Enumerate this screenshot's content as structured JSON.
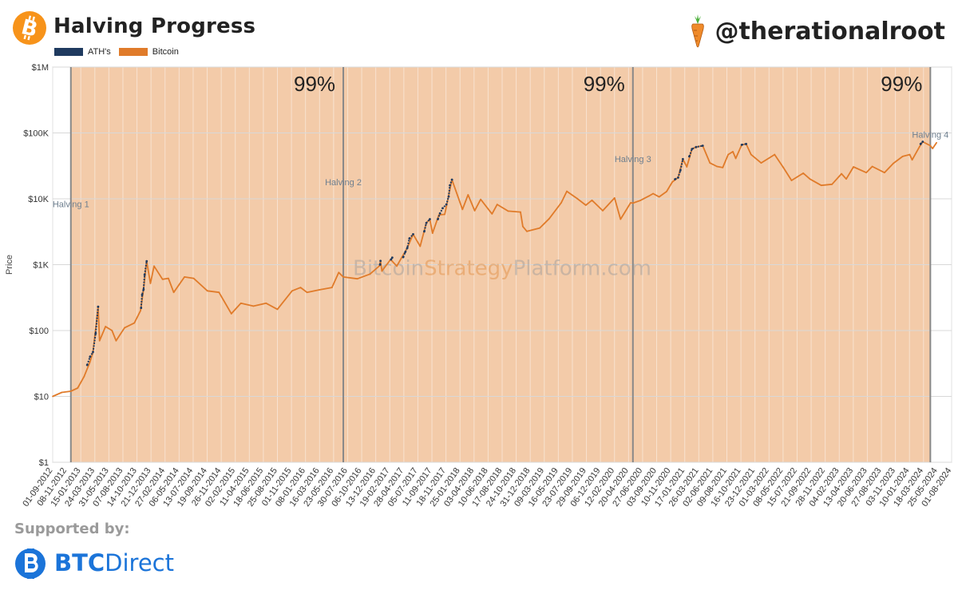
{
  "header": {
    "title": "Halving Progress",
    "handle": "@therationalroot",
    "legend": [
      {
        "label": "ATH's",
        "color": "#1f3a5f"
      },
      {
        "label": "Bitcoin",
        "color": "#e07b2a"
      }
    ]
  },
  "footer": {
    "supported_label": "Supported by:",
    "brand_prefix": "BTC",
    "brand_suffix": "Direct"
  },
  "colors": {
    "bitcoin": "#e07b2a",
    "ath": "#1f3a5f",
    "shade": "#f3cba9",
    "brand_blue": "#1b74d9",
    "btc_orange": "#f7931a"
  },
  "chart_data": {
    "type": "line",
    "y_scale": "log",
    "ylabel": "Price",
    "ylim": [
      1,
      1000000
    ],
    "y_ticks": [
      "$1",
      "$10",
      "$100",
      "$1K",
      "$10K",
      "$100K",
      "$1M"
    ],
    "x_range": [
      "2012-09-01",
      "2024-08-01"
    ],
    "x_ticks": [
      "01-09-2012",
      "08-11-2012",
      "15-01-2013",
      "24-03-2013",
      "31-05-2013",
      "07-08-2013",
      "14-10-2013",
      "21-12-2013",
      "27-02-2014",
      "06-05-2014",
      "13-07-2014",
      "19-09-2014",
      "26-11-2014",
      "02-02-2015",
      "11-04-2015",
      "18-06-2015",
      "25-08-2015",
      "01-11-2015",
      "08-01-2016",
      "16-03-2016",
      "23-05-2016",
      "30-07-2016",
      "06-10-2016",
      "13-12-2016",
      "19-02-2017",
      "28-04-2017",
      "05-07-2017",
      "11-09-2017",
      "18-11-2017",
      "25-01-2018",
      "03-04-2018",
      "10-06-2018",
      "17-08-2018",
      "24-10-2018",
      "31-12-2018",
      "09-03-2019",
      "16-05-2019",
      "23-07-2019",
      "29-09-2019",
      "06-12-2019",
      "12-02-2020",
      "20-04-2020",
      "27-06-2020",
      "03-09-2020",
      "10-11-2020",
      "17-01-2021",
      "26-03-2021",
      "02-06-2021",
      "09-08-2021",
      "16-10-2021",
      "23-12-2021",
      "01-03-2022",
      "08-05-2022",
      "15-07-2022",
      "21-09-2022",
      "28-11-2022",
      "04-02-2023",
      "13-04-2023",
      "20-06-2023",
      "27-08-2023",
      "03-11-2023",
      "10-01-2024",
      "18-03-2024",
      "25-05-2024",
      "01-08-2024"
    ],
    "halvings": [
      {
        "label": "Halving 1",
        "date": "2012-11-28"
      },
      {
        "label": "Halving 2",
        "date": "2016-07-09"
      },
      {
        "label": "Halving 3",
        "date": "2020-05-11"
      },
      {
        "label": "Halving 4",
        "date": "2024-04-20"
      }
    ],
    "progress_labels": [
      "99%",
      "99%",
      "99%"
    ],
    "watermark": {
      "part1": "Bitcoin",
      "part2": "Strategy",
      "part3": "Platform.com"
    },
    "series": [
      {
        "name": "Bitcoin",
        "points": [
          [
            "2012-09-01",
            10
          ],
          [
            "2012-10-15",
            11.5
          ],
          [
            "2012-11-28",
            12
          ],
          [
            "2012-12-31",
            13.4
          ],
          [
            "2013-01-31",
            20
          ],
          [
            "2013-02-28",
            33
          ],
          [
            "2013-03-15",
            47
          ],
          [
            "2013-04-09",
            230
          ],
          [
            "2013-04-16",
            70
          ],
          [
            "2013-05-15",
            115
          ],
          [
            "2013-06-15",
            100
          ],
          [
            "2013-07-05",
            70
          ],
          [
            "2013-08-15",
            110
          ],
          [
            "2013-10-01",
            130
          ],
          [
            "2013-10-31",
            200
          ],
          [
            "2013-11-15",
            420
          ],
          [
            "2013-11-30",
            1130
          ],
          [
            "2013-12-18",
            520
          ],
          [
            "2014-01-05",
            950
          ],
          [
            "2014-02-15",
            600
          ],
          [
            "2014-03-15",
            620
          ],
          [
            "2014-04-10",
            380
          ],
          [
            "2014-06-01",
            650
          ],
          [
            "2014-07-15",
            620
          ],
          [
            "2014-09-20",
            400
          ],
          [
            "2014-11-15",
            380
          ],
          [
            "2015-01-14",
            180
          ],
          [
            "2015-03-01",
            260
          ],
          [
            "2015-05-01",
            235
          ],
          [
            "2015-07-01",
            260
          ],
          [
            "2015-08-25",
            210
          ],
          [
            "2015-11-04",
            400
          ],
          [
            "2015-12-15",
            450
          ],
          [
            "2016-01-15",
            380
          ],
          [
            "2016-03-15",
            415
          ],
          [
            "2016-05-15",
            450
          ],
          [
            "2016-06-17",
            760
          ],
          [
            "2016-07-09",
            650
          ],
          [
            "2016-09-15",
            610
          ],
          [
            "2016-11-15",
            720
          ],
          [
            "2016-12-31",
            960
          ],
          [
            "2017-01-05",
            1140
          ],
          [
            "2017-01-12",
            800
          ],
          [
            "2017-02-23",
            1200
          ],
          [
            "2017-03-25",
            950
          ],
          [
            "2017-05-15",
            1800
          ],
          [
            "2017-06-12",
            2900
          ],
          [
            "2017-07-16",
            1900
          ],
          [
            "2017-08-15",
            4300
          ],
          [
            "2017-09-01",
            4900
          ],
          [
            "2017-09-14",
            3000
          ],
          [
            "2017-10-15",
            5700
          ],
          [
            "2017-11-12",
            5800
          ],
          [
            "2017-12-17",
            19500
          ],
          [
            "2018-02-06",
            6900
          ],
          [
            "2018-03-05",
            11500
          ],
          [
            "2018-04-06",
            6600
          ],
          [
            "2018-05-05",
            9800
          ],
          [
            "2018-06-29",
            5900
          ],
          [
            "2018-07-24",
            8200
          ],
          [
            "2018-09-15",
            6500
          ],
          [
            "2018-11-14",
            6300
          ],
          [
            "2018-11-25",
            3800
          ],
          [
            "2018-12-15",
            3200
          ],
          [
            "2019-02-15",
            3600
          ],
          [
            "2019-04-02",
            5000
          ],
          [
            "2019-05-30",
            8700
          ],
          [
            "2019-06-26",
            13000
          ],
          [
            "2019-08-15",
            10100
          ],
          [
            "2019-09-26",
            8000
          ],
          [
            "2019-10-26",
            9500
          ],
          [
            "2019-12-17",
            6600
          ],
          [
            "2020-02-12",
            10300
          ],
          [
            "2020-03-12",
            4900
          ],
          [
            "2020-04-30",
            8700
          ],
          [
            "2020-05-11",
            8600
          ],
          [
            "2020-06-15",
            9400
          ],
          [
            "2020-07-27",
            11000
          ],
          [
            "2020-08-17",
            12000
          ],
          [
            "2020-09-15",
            10700
          ],
          [
            "2020-10-21",
            12900
          ],
          [
            "2020-11-18",
            18000
          ],
          [
            "2020-12-16",
            21000
          ],
          [
            "2021-01-08",
            40000
          ],
          [
            "2021-01-27",
            30500
          ],
          [
            "2021-02-21",
            57000
          ],
          [
            "2021-03-13",
            61000
          ],
          [
            "2021-04-14",
            64000
          ],
          [
            "2021-05-19",
            35000
          ],
          [
            "2021-06-22",
            31000
          ],
          [
            "2021-07-20",
            29800
          ],
          [
            "2021-08-15",
            47000
          ],
          [
            "2021-09-07",
            52000
          ],
          [
            "2021-09-21",
            41000
          ],
          [
            "2021-10-20",
            66000
          ],
          [
            "2021-11-10",
            68000
          ],
          [
            "2021-12-04",
            47000
          ],
          [
            "2022-01-22",
            35000
          ],
          [
            "2022-03-28",
            47000
          ],
          [
            "2022-05-09",
            30000
          ],
          [
            "2022-06-18",
            19000
          ],
          [
            "2022-08-14",
            24500
          ],
          [
            "2022-09-15",
            20000
          ],
          [
            "2022-11-09",
            16000
          ],
          [
            "2022-12-31",
            16600
          ],
          [
            "2023-02-15",
            24000
          ],
          [
            "2023-03-10",
            20000
          ],
          [
            "2023-04-14",
            30500
          ],
          [
            "2023-06-15",
            25000
          ],
          [
            "2023-07-14",
            31000
          ],
          [
            "2023-09-11",
            25000
          ],
          [
            "2023-10-24",
            34500
          ],
          [
            "2023-12-08",
            44000
          ],
          [
            "2024-01-11",
            47000
          ],
          [
            "2024-01-23",
            39000
          ],
          [
            "2024-02-28",
            62000
          ],
          [
            "2024-03-14",
            73500
          ],
          [
            "2024-04-20",
            64000
          ],
          [
            "2024-05-01",
            58000
          ],
          [
            "2024-05-20",
            71000
          ]
        ]
      },
      {
        "name": "ATH's",
        "segments": [
          [
            [
              "2013-02-15",
              30
            ],
            [
              "2013-03-01",
              40
            ],
            [
              "2013-03-15",
              47
            ],
            [
              "2013-03-28",
              90
            ],
            [
              "2013-04-09",
              230
            ]
          ],
          [
            [
              "2013-11-03",
              220
            ],
            [
              "2013-11-08",
              350
            ],
            [
              "2013-11-15",
              420
            ],
            [
              "2013-11-20",
              700
            ],
            [
              "2013-11-30",
              1130
            ]
          ],
          [
            [
              "2017-01-03",
              1000
            ],
            [
              "2017-01-05",
              1140
            ]
          ],
          [
            [
              "2017-02-25",
              1200
            ],
            [
              "2017-03-03",
              1280
            ]
          ],
          [
            [
              "2017-04-25",
              1300
            ],
            [
              "2017-05-05",
              1550
            ],
            [
              "2017-05-15",
              1800
            ],
            [
              "2017-05-25",
              2500
            ],
            [
              "2017-06-12",
              2900
            ]
          ],
          [
            [
              "2017-08-05",
              3200
            ],
            [
              "2017-08-15",
              4300
            ],
            [
              "2017-09-01",
              4900
            ]
          ],
          [
            [
              "2017-10-10",
              4900
            ],
            [
              "2017-10-20",
              6000
            ],
            [
              "2017-11-02",
              7200
            ],
            [
              "2017-11-20",
              8200
            ],
            [
              "2017-12-01",
              10800
            ],
            [
              "2017-12-07",
              16000
            ],
            [
              "2017-12-17",
              19500
            ]
          ],
          [
            [
              "2020-12-01",
              19800
            ],
            [
              "2020-12-16",
              21000
            ],
            [
              "2020-12-27",
              27000
            ],
            [
              "2021-01-08",
              40000
            ]
          ],
          [
            [
              "2021-02-08",
              44000
            ],
            [
              "2021-02-21",
              57000
            ],
            [
              "2021-03-13",
              61000
            ],
            [
              "2021-04-14",
              64000
            ]
          ],
          [
            [
              "2021-10-20",
              66000
            ],
            [
              "2021-11-10",
              68000
            ]
          ],
          [
            [
              "2024-03-04",
              68000
            ],
            [
              "2024-03-14",
              73500
            ]
          ]
        ]
      }
    ]
  }
}
